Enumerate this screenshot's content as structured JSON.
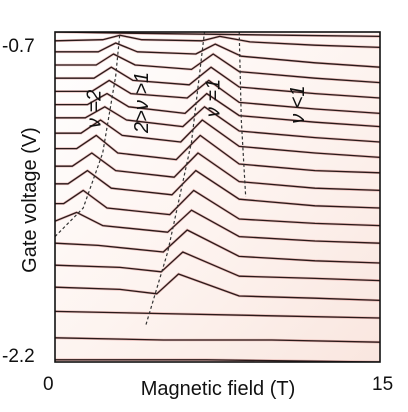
{
  "chart_data": {
    "type": "line",
    "title": "",
    "xlabel": "Magnetic field (T)",
    "ylabel": "Gate voltage (V)",
    "xlim": [
      0,
      15
    ],
    "ylim": [
      -2.2,
      -0.7
    ],
    "x_tick_labels": [
      "0",
      "15"
    ],
    "y_tick_labels": [
      "-0.7",
      "-2.2"
    ],
    "grid": false,
    "legend": "none",
    "colors": {
      "frame": "#111111",
      "trace": "#2a1a1a",
      "trace_highlight": "#c0504d",
      "background": "#fdf5f2",
      "boundary": "#333333"
    },
    "series": [
      {
        "values": [
          {
            "x": 0,
            "y": -0.7
          },
          {
            "x": 3,
            "y": -0.705
          },
          {
            "x": 7,
            "y": -0.71
          },
          {
            "x": 11,
            "y": -0.715
          },
          {
            "x": 15,
            "y": -0.72
          }
        ]
      },
      {
        "values": [
          {
            "x": 0,
            "y": -0.74
          },
          {
            "x": 2.2,
            "y": -0.735
          },
          {
            "x": 3,
            "y": -0.715
          },
          {
            "x": 4,
            "y": -0.735
          },
          {
            "x": 6.8,
            "y": -0.74
          },
          {
            "x": 7.6,
            "y": -0.72
          },
          {
            "x": 9,
            "y": -0.745
          },
          {
            "x": 12,
            "y": -0.76
          },
          {
            "x": 15,
            "y": -0.77
          }
        ]
      },
      {
        "values": [
          {
            "x": 0,
            "y": -0.79
          },
          {
            "x": 2,
            "y": -0.79
          },
          {
            "x": 2.8,
            "y": -0.75
          },
          {
            "x": 3.8,
            "y": -0.79
          },
          {
            "x": 6.5,
            "y": -0.8
          },
          {
            "x": 7.4,
            "y": -0.755
          },
          {
            "x": 8.6,
            "y": -0.81
          },
          {
            "x": 12,
            "y": -0.84
          },
          {
            "x": 15,
            "y": -0.86
          }
        ]
      },
      {
        "values": [
          {
            "x": 0,
            "y": -0.85
          },
          {
            "x": 1.9,
            "y": -0.85
          },
          {
            "x": 2.7,
            "y": -0.8
          },
          {
            "x": 3.7,
            "y": -0.85
          },
          {
            "x": 6.3,
            "y": -0.87
          },
          {
            "x": 7.3,
            "y": -0.8
          },
          {
            "x": 8.5,
            "y": -0.88
          },
          {
            "x": 12,
            "y": -0.91
          },
          {
            "x": 15,
            "y": -0.93
          }
        ]
      },
      {
        "values": [
          {
            "x": 0,
            "y": -0.91
          },
          {
            "x": 1.8,
            "y": -0.91
          },
          {
            "x": 2.6,
            "y": -0.86
          },
          {
            "x": 3.6,
            "y": -0.92
          },
          {
            "x": 6.2,
            "y": -0.94
          },
          {
            "x": 7.2,
            "y": -0.86
          },
          {
            "x": 8.5,
            "y": -0.95
          },
          {
            "x": 12,
            "y": -0.98
          },
          {
            "x": 15,
            "y": -1.0
          }
        ]
      },
      {
        "values": [
          {
            "x": 0,
            "y": -0.97
          },
          {
            "x": 1.7,
            "y": -0.97
          },
          {
            "x": 2.5,
            "y": -0.92
          },
          {
            "x": 3.5,
            "y": -0.98
          },
          {
            "x": 6.1,
            "y": -1.0
          },
          {
            "x": 7.1,
            "y": -0.92
          },
          {
            "x": 8.5,
            "y": -1.02
          },
          {
            "x": 12,
            "y": -1.05
          },
          {
            "x": 15,
            "y": -1.07
          }
        ]
      },
      {
        "values": [
          {
            "x": 0,
            "y": -1.03
          },
          {
            "x": 1.5,
            "y": -1.03
          },
          {
            "x": 2.4,
            "y": -0.98
          },
          {
            "x": 3.4,
            "y": -1.04
          },
          {
            "x": 6.0,
            "y": -1.07
          },
          {
            "x": 7.0,
            "y": -0.98
          },
          {
            "x": 8.5,
            "y": -1.08
          },
          {
            "x": 12,
            "y": -1.11
          },
          {
            "x": 15,
            "y": -1.13
          }
        ]
      },
      {
        "values": [
          {
            "x": 0,
            "y": -1.09
          },
          {
            "x": 1.4,
            "y": -1.09
          },
          {
            "x": 2.3,
            "y": -1.04
          },
          {
            "x": 3.3,
            "y": -1.1
          },
          {
            "x": 5.9,
            "y": -1.13
          },
          {
            "x": 6.9,
            "y": -1.04
          },
          {
            "x": 8.5,
            "y": -1.15
          },
          {
            "x": 12,
            "y": -1.18
          },
          {
            "x": 15,
            "y": -1.2
          }
        ]
      },
      {
        "values": [
          {
            "x": 0,
            "y": -1.16
          },
          {
            "x": 1.2,
            "y": -1.16
          },
          {
            "x": 2.1,
            "y": -1.1
          },
          {
            "x": 3.1,
            "y": -1.17
          },
          {
            "x": 5.8,
            "y": -1.2
          },
          {
            "x": 6.8,
            "y": -1.1
          },
          {
            "x": 8.5,
            "y": -1.22
          },
          {
            "x": 12,
            "y": -1.25
          },
          {
            "x": 15,
            "y": -1.27
          }
        ]
      },
      {
        "values": [
          {
            "x": 0,
            "y": -1.23
          },
          {
            "x": 1.0,
            "y": -1.23
          },
          {
            "x": 1.9,
            "y": -1.17
          },
          {
            "x": 2.9,
            "y": -1.25
          },
          {
            "x": 5.6,
            "y": -1.28
          },
          {
            "x": 6.7,
            "y": -1.17
          },
          {
            "x": 8.5,
            "y": -1.3
          },
          {
            "x": 12,
            "y": -1.33
          },
          {
            "x": 15,
            "y": -1.34
          }
        ]
      },
      {
        "values": [
          {
            "x": 0,
            "y": -1.31
          },
          {
            "x": 0.8,
            "y": -1.31
          },
          {
            "x": 1.7,
            "y": -1.25
          },
          {
            "x": 2.8,
            "y": -1.33
          },
          {
            "x": 5.5,
            "y": -1.36
          },
          {
            "x": 6.6,
            "y": -1.25
          },
          {
            "x": 8.5,
            "y": -1.38
          },
          {
            "x": 12,
            "y": -1.41
          },
          {
            "x": 15,
            "y": -1.42
          }
        ]
      },
      {
        "values": [
          {
            "x": 0,
            "y": -1.39
          },
          {
            "x": 0.6,
            "y": -1.39
          },
          {
            "x": 1.5,
            "y": -1.33
          },
          {
            "x": 2.6,
            "y": -1.41
          },
          {
            "x": 5.4,
            "y": -1.44
          },
          {
            "x": 6.5,
            "y": -1.33
          },
          {
            "x": 8.5,
            "y": -1.46
          },
          {
            "x": 12,
            "y": -1.49
          },
          {
            "x": 15,
            "y": -1.5
          }
        ]
      },
      {
        "values": [
          {
            "x": 0,
            "y": -1.48
          },
          {
            "x": 0.4,
            "y": -1.48
          },
          {
            "x": 1.3,
            "y": -1.42
          },
          {
            "x": 2.4,
            "y": -1.5
          },
          {
            "x": 5.3,
            "y": -1.53
          },
          {
            "x": 6.4,
            "y": -1.42
          },
          {
            "x": 8.5,
            "y": -1.55
          },
          {
            "x": 12,
            "y": -1.57
          },
          {
            "x": 15,
            "y": -1.58
          }
        ]
      },
      {
        "values": [
          {
            "x": 0,
            "y": -1.56
          },
          {
            "x": 1.0,
            "y": -1.52
          },
          {
            "x": 2.2,
            "y": -1.58
          },
          {
            "x": 5.2,
            "y": -1.61
          },
          {
            "x": 6.3,
            "y": -1.51
          },
          {
            "x": 8.5,
            "y": -1.63
          },
          {
            "x": 12,
            "y": -1.65
          },
          {
            "x": 15,
            "y": -1.66
          }
        ]
      },
      {
        "values": [
          {
            "x": 0,
            "y": -1.66
          },
          {
            "x": 2,
            "y": -1.67
          },
          {
            "x": 5.0,
            "y": -1.7
          },
          {
            "x": 6.1,
            "y": -1.6
          },
          {
            "x": 8.5,
            "y": -1.72
          },
          {
            "x": 12,
            "y": -1.74
          },
          {
            "x": 15,
            "y": -1.75
          }
        ]
      },
      {
        "values": [
          {
            "x": 0,
            "y": -1.76
          },
          {
            "x": 3,
            "y": -1.77
          },
          {
            "x": 4.9,
            "y": -1.79
          },
          {
            "x": 5.9,
            "y": -1.7
          },
          {
            "x": 8.5,
            "y": -1.81
          },
          {
            "x": 12,
            "y": -1.82
          },
          {
            "x": 15,
            "y": -1.83
          }
        ]
      },
      {
        "values": [
          {
            "x": 0,
            "y": -1.86
          },
          {
            "x": 3,
            "y": -1.87
          },
          {
            "x": 4.7,
            "y": -1.89
          },
          {
            "x": 5.7,
            "y": -1.8
          },
          {
            "x": 8.5,
            "y": -1.9
          },
          {
            "x": 12,
            "y": -1.91
          },
          {
            "x": 15,
            "y": -1.92
          }
        ]
      },
      {
        "values": [
          {
            "x": 0,
            "y": -1.97
          },
          {
            "x": 5,
            "y": -1.98
          },
          {
            "x": 10,
            "y": -1.99
          },
          {
            "x": 15,
            "y": -2.0
          }
        ]
      },
      {
        "values": [
          {
            "x": 0,
            "y": -2.09
          },
          {
            "x": 5,
            "y": -2.1
          },
          {
            "x": 10,
            "y": -2.1
          },
          {
            "x": 15,
            "y": -2.11
          }
        ]
      },
      {
        "values": [
          {
            "x": 0,
            "y": -2.19
          },
          {
            "x": 7,
            "y": -2.19
          },
          {
            "x": 15,
            "y": -2.2
          }
        ]
      }
    ],
    "boundaries": [
      {
        "name": "nu-2-boundary",
        "points": [
          {
            "x": 0.0,
            "y": -1.63
          },
          {
            "x": 1.3,
            "y": -1.5
          },
          {
            "x": 2.2,
            "y": -1.25
          },
          {
            "x": 2.8,
            "y": -0.9
          },
          {
            "x": 3.0,
            "y": -0.7
          }
        ]
      },
      {
        "name": "nu-1-lower-boundary",
        "points": [
          {
            "x": 4.2,
            "y": -2.03
          },
          {
            "x": 5.2,
            "y": -1.7
          },
          {
            "x": 6.3,
            "y": -1.2
          },
          {
            "x": 6.9,
            "y": -0.7
          }
        ]
      },
      {
        "name": "nu-1-upper-boundary",
        "points": [
          {
            "x": 8.5,
            "y": -0.7
          },
          {
            "x": 8.6,
            "y": -1.1
          },
          {
            "x": 8.8,
            "y": -1.45
          }
        ]
      }
    ],
    "annotations": [
      {
        "text": "ν =2",
        "x": 2.1,
        "y": -1.05
      },
      {
        "text": "2>ν >1",
        "x": 4.3,
        "y": -1.02
      },
      {
        "text": "ν =1",
        "x": 7.6,
        "y": -1.0
      },
      {
        "text": "ν <1",
        "x": 11.5,
        "y": -1.03
      }
    ]
  }
}
